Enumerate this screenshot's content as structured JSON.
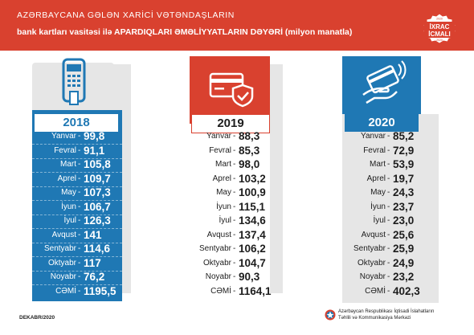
{
  "header": {
    "line1": "AZƏRBAYCANA GƏLƏN XARİCİ VƏTƏNDAŞLARIN",
    "line2": "bank kartları vasitəsi ilə APARDIQLARI ƏMƏLİYYATLARIN DƏYƏRİ (milyon manatla)"
  },
  "badge": {
    "top": "2020",
    "line1": "İXRAC",
    "line2": "İCMALI",
    "bottom": "2020"
  },
  "months": [
    "Yanvar",
    "Fevral",
    "Mart",
    "Aprel",
    "May",
    "İyun",
    "İyul",
    "Avqust",
    "Sentyabr",
    "Oktyabr",
    "Noyabr",
    "CƏMİ"
  ],
  "columns": [
    {
      "year": "2018",
      "values": [
        "99,8",
        "91,1",
        "105,8",
        "109,7",
        "107,3",
        "106,7",
        "126,3",
        "141",
        "114,6",
        "117",
        "76,2",
        "1195,5"
      ]
    },
    {
      "year": "2019",
      "values": [
        "88,3",
        "85,3",
        "98,0",
        "103,2",
        "100,9",
        "115,1",
        "134,6",
        "137,4",
        "106,2",
        "104,7",
        "90,3",
        "1164,1"
      ]
    },
    {
      "year": "2020",
      "values": [
        "85,2",
        "72,9",
        "53,9",
        "19,7",
        "24,3",
        "23,7",
        "23,0",
        "25,6",
        "25,9",
        "24,9",
        "23,2",
        "402,3"
      ]
    }
  ],
  "colors": {
    "red": "#d9412f",
    "blue": "#1f78b4",
    "gray": "#e6e6e6",
    "dark": "#1d1d1d"
  },
  "icons": [
    "pos-terminal-icon",
    "credit-card-shield-icon",
    "contactless-card-icon"
  ],
  "footer": {
    "date": "DEKABR/2020",
    "org1": "Azərbaycan Respublikası İqtisadi İslahatların",
    "org2": "Təhlili və Kommunikasiya Mərkəzi"
  }
}
